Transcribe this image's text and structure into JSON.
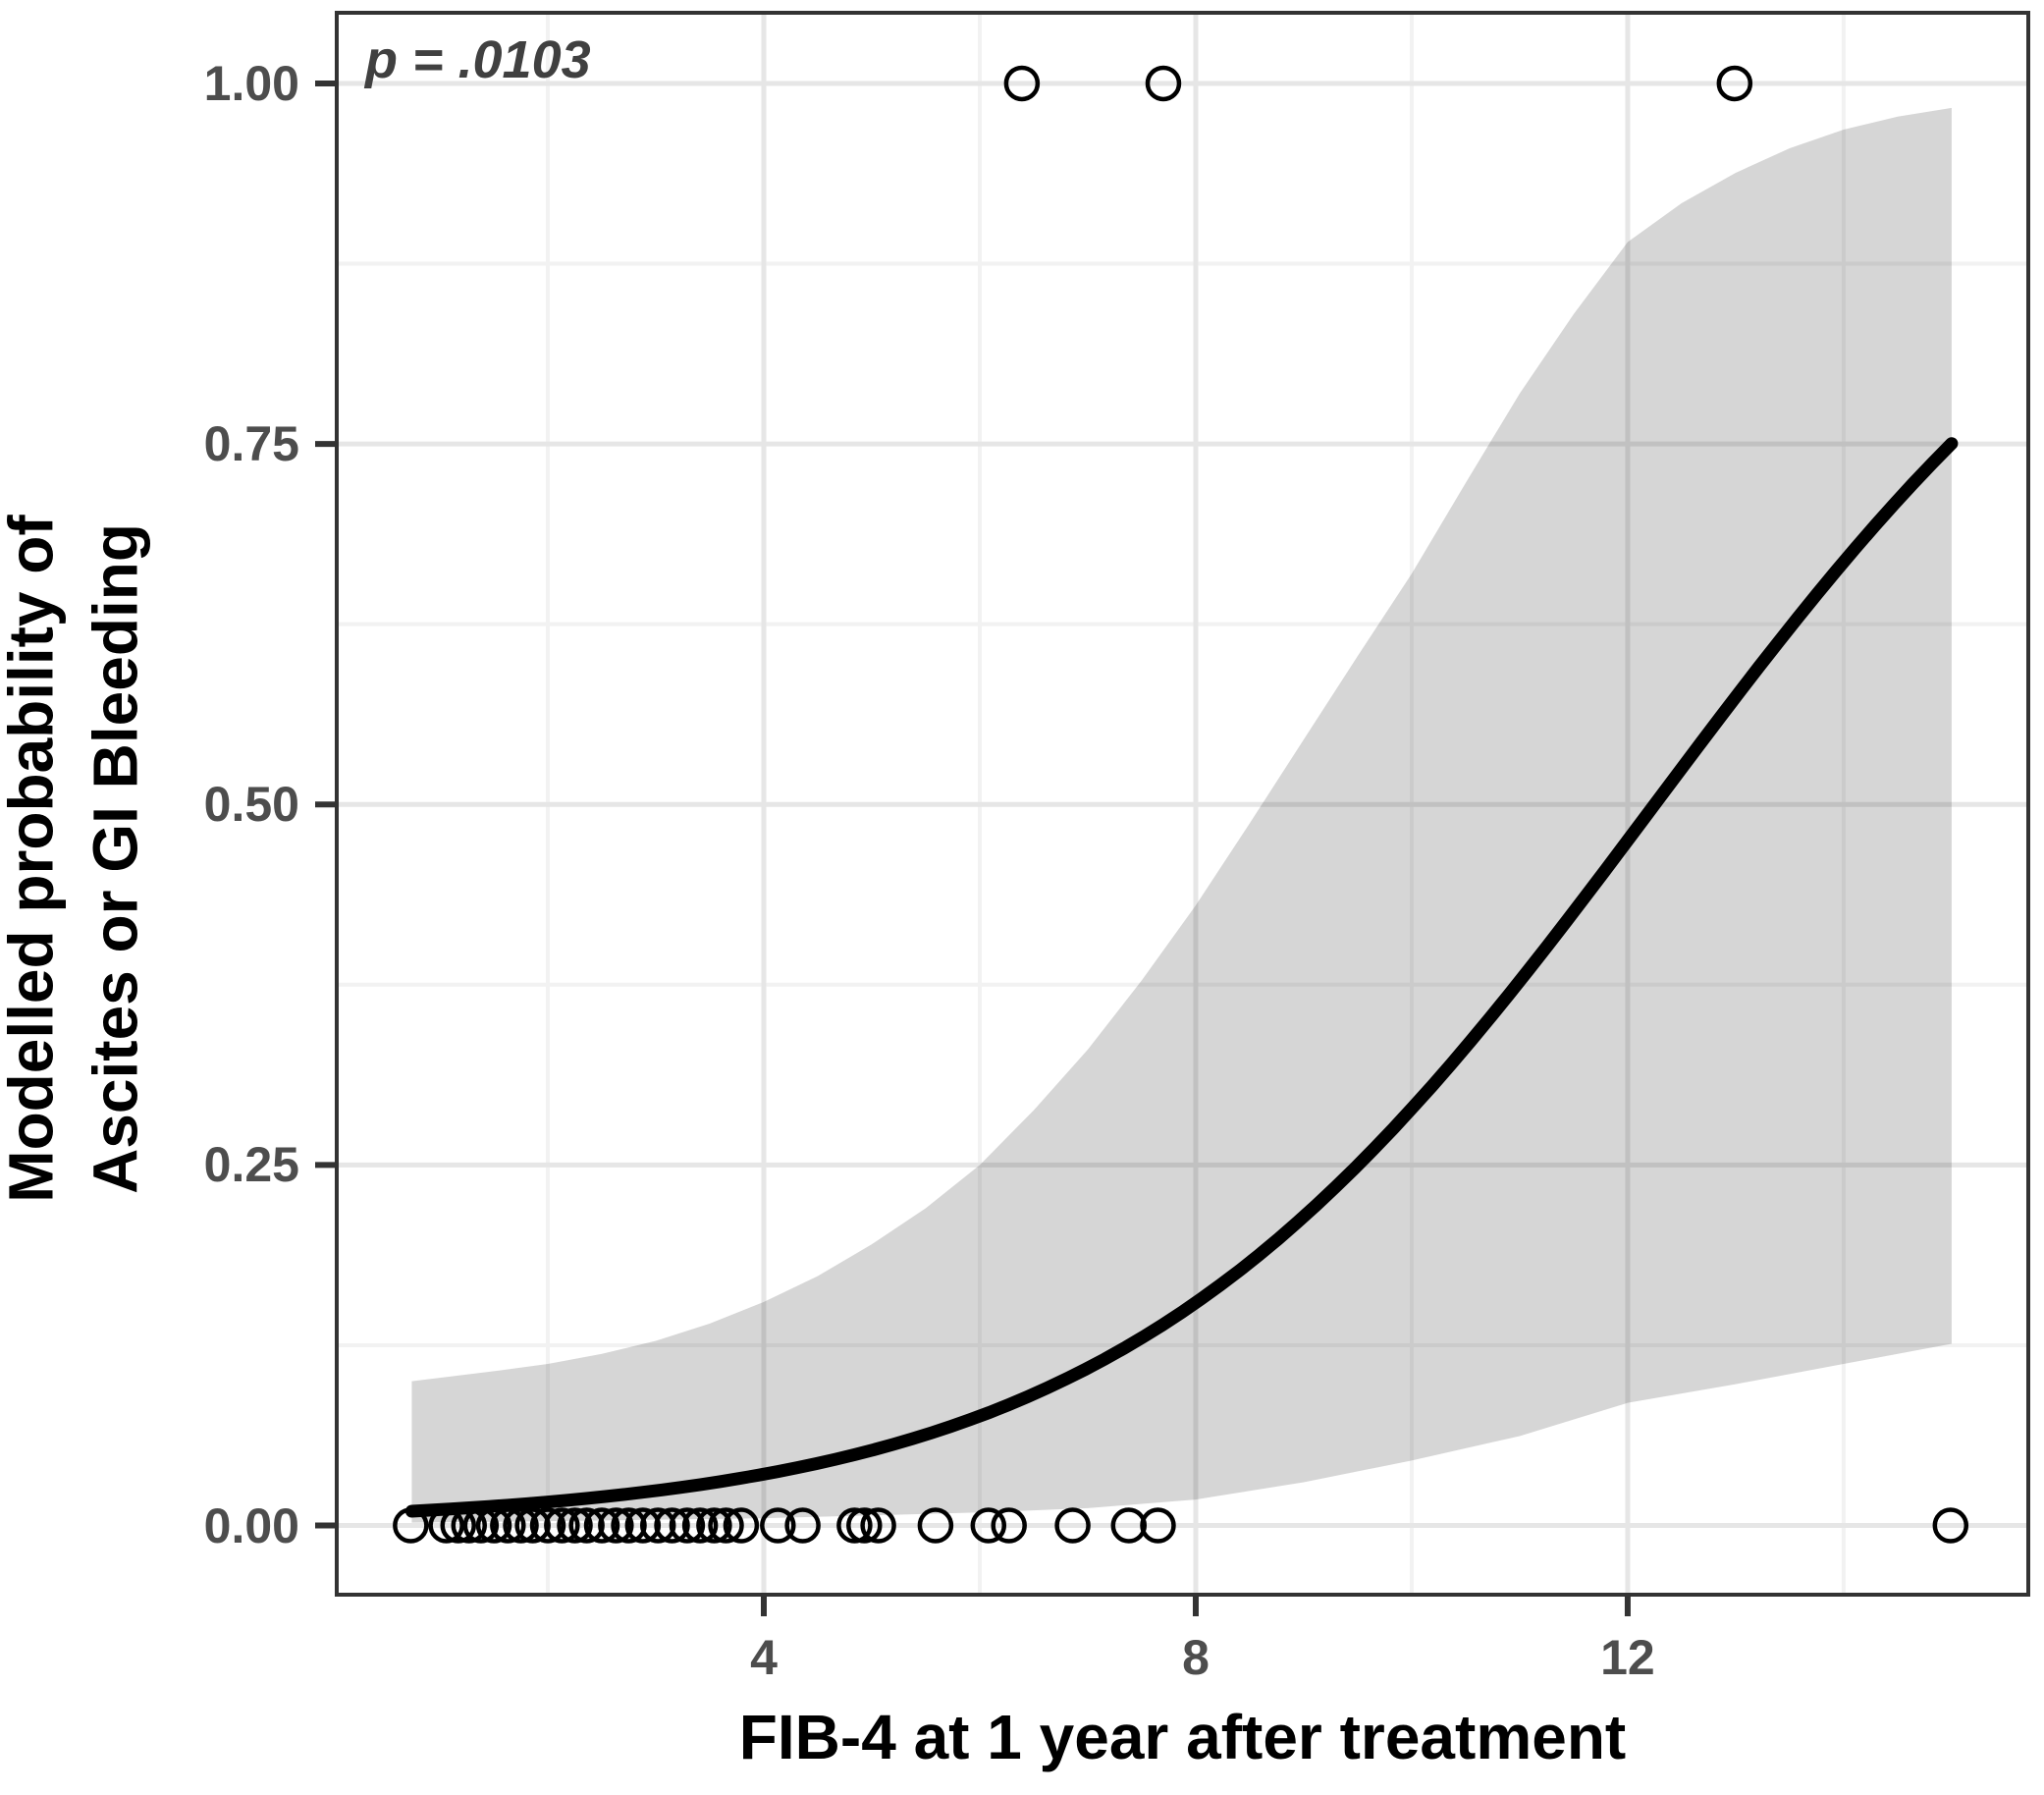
{
  "chart_data": {
    "type": "scatter",
    "title": "",
    "xlabel": "FIB-4 at 1 year after treatment",
    "ylabel_lines": [
      "Modelled probability of",
      "Ascites or GI Bleeding"
    ],
    "annotation": "p = .0103",
    "x_axis": {
      "ticks": [
        4,
        8,
        12
      ],
      "tick_labels": [
        "4",
        "8",
        "12"
      ],
      "minor_ticks": [
        2,
        6,
        10,
        14
      ],
      "lim": [
        0.045,
        15.71
      ]
    },
    "y_axis": {
      "ticks": [
        0.0,
        0.25,
        0.5,
        0.75,
        1.0
      ],
      "tick_labels": [
        "0.00",
        "0.25",
        "0.50",
        "0.75",
        "1.00"
      ],
      "minor_ticks": [
        0.125,
        0.375,
        0.625,
        0.875
      ],
      "lim": [
        -0.048,
        1.049
      ]
    },
    "grid": "on",
    "legend": "none",
    "points_y0_x": [
      0.73,
      1.06,
      1.17,
      1.27,
      1.38,
      1.5,
      1.63,
      1.75,
      1.86,
      2.0,
      2.13,
      2.25,
      2.36,
      2.5,
      2.63,
      2.75,
      2.88,
      3.02,
      3.15,
      3.29,
      3.41,
      3.54,
      3.65,
      3.79,
      4.13,
      4.36,
      4.84,
      4.93,
      5.06,
      5.59,
      6.08,
      6.27,
      6.86,
      7.38,
      7.65,
      14.99
    ],
    "points_y1_x": [
      6.39,
      7.7,
      12.99
    ],
    "fit": {
      "model": "logistic",
      "intercept": -4.9,
      "slope": 0.4,
      "x_range": [
        0.74,
        15.0
      ]
    },
    "ci_upper": [
      [
        0.74,
        0.1
      ],
      [
        1.5,
        0.107
      ],
      [
        2,
        0.112
      ],
      [
        2.5,
        0.119
      ],
      [
        3,
        0.128
      ],
      [
        3.5,
        0.14
      ],
      [
        4,
        0.155
      ],
      [
        4.5,
        0.173
      ],
      [
        5,
        0.195
      ],
      [
        5.5,
        0.22
      ],
      [
        6,
        0.25
      ],
      [
        6.5,
        0.288
      ],
      [
        7,
        0.33
      ],
      [
        7.5,
        0.378
      ],
      [
        8,
        0.43
      ],
      [
        8.5,
        0.487
      ],
      [
        9,
        0.545
      ],
      [
        9.5,
        0.603
      ],
      [
        10,
        0.66
      ],
      [
        10.5,
        0.723
      ],
      [
        11,
        0.785
      ],
      [
        11.5,
        0.84
      ],
      [
        12,
        0.89
      ],
      [
        12.5,
        0.917
      ],
      [
        13,
        0.938
      ],
      [
        13.5,
        0.955
      ],
      [
        14,
        0.968
      ],
      [
        14.5,
        0.977
      ],
      [
        15,
        0.983
      ]
    ],
    "ci_lower": [
      [
        0.74,
        0.002
      ],
      [
        2,
        0.003
      ],
      [
        3,
        0.004
      ],
      [
        4,
        0.005
      ],
      [
        5,
        0.007
      ],
      [
        6,
        0.009
      ],
      [
        7,
        0.012
      ],
      [
        8,
        0.018
      ],
      [
        9,
        0.03
      ],
      [
        10,
        0.045
      ],
      [
        11,
        0.062
      ],
      [
        12,
        0.085
      ],
      [
        13,
        0.098
      ],
      [
        14,
        0.112
      ],
      [
        15,
        0.126
      ]
    ],
    "colors": {
      "curve": "#000000",
      "points": "#000000",
      "ci_band": "rgba(0,0,0,0.16)",
      "panel_border": "#333333",
      "tick_mark": "#333333",
      "tick_label": "#4d4d4d",
      "major_grid": "#e6e6e6",
      "minor_grid": "#f2f2f2",
      "annotation": "#404040",
      "axis_title": "#000000",
      "background": "#ffffff"
    }
  }
}
